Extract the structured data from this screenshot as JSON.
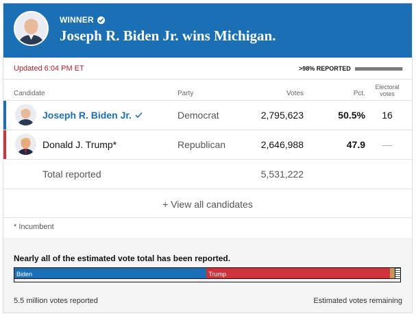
{
  "header": {
    "winner_label": "WINNER",
    "headline": "Joseph R. Biden Jr. wins Michigan.",
    "accent": "#1a6fb5"
  },
  "status": {
    "updated": "Updated 6:04 PM ET",
    "reported_label": ">98% REPORTED",
    "reported_fraction": 0.98
  },
  "table": {
    "headers": {
      "candidate": "Candidate",
      "party": "Party",
      "votes": "Votes",
      "pct": "Pct.",
      "electoral_line1": "Electoral",
      "electoral_line2": "votes"
    },
    "rows": [
      {
        "name": "Joseph R. Biden Jr.",
        "party": "Democrat",
        "votes": "2,795,623",
        "pct": "50.5%",
        "electoral": "16",
        "color": "#1a6fb5",
        "winner": true
      },
      {
        "name": "Donald J. Trump*",
        "party": "Republican",
        "votes": "2,646,988",
        "pct": "47.9",
        "electoral": "—",
        "color": "#d0323b",
        "winner": false
      }
    ],
    "total": {
      "label": "Total reported",
      "votes": "5,531,222"
    },
    "view_all": "+ View all candidates",
    "footnote": "* Incumbent"
  },
  "footer": {
    "title": "Nearly all of the estimated vote total has been reported.",
    "bar": {
      "biden_label": "Biden",
      "trump_label": "Trump",
      "biden_share": 0.498,
      "trump_share": 0.475,
      "other_share": 0.012
    },
    "reported_text": "5.5 million votes reported",
    "remaining_text": "Estimated votes remaining"
  }
}
